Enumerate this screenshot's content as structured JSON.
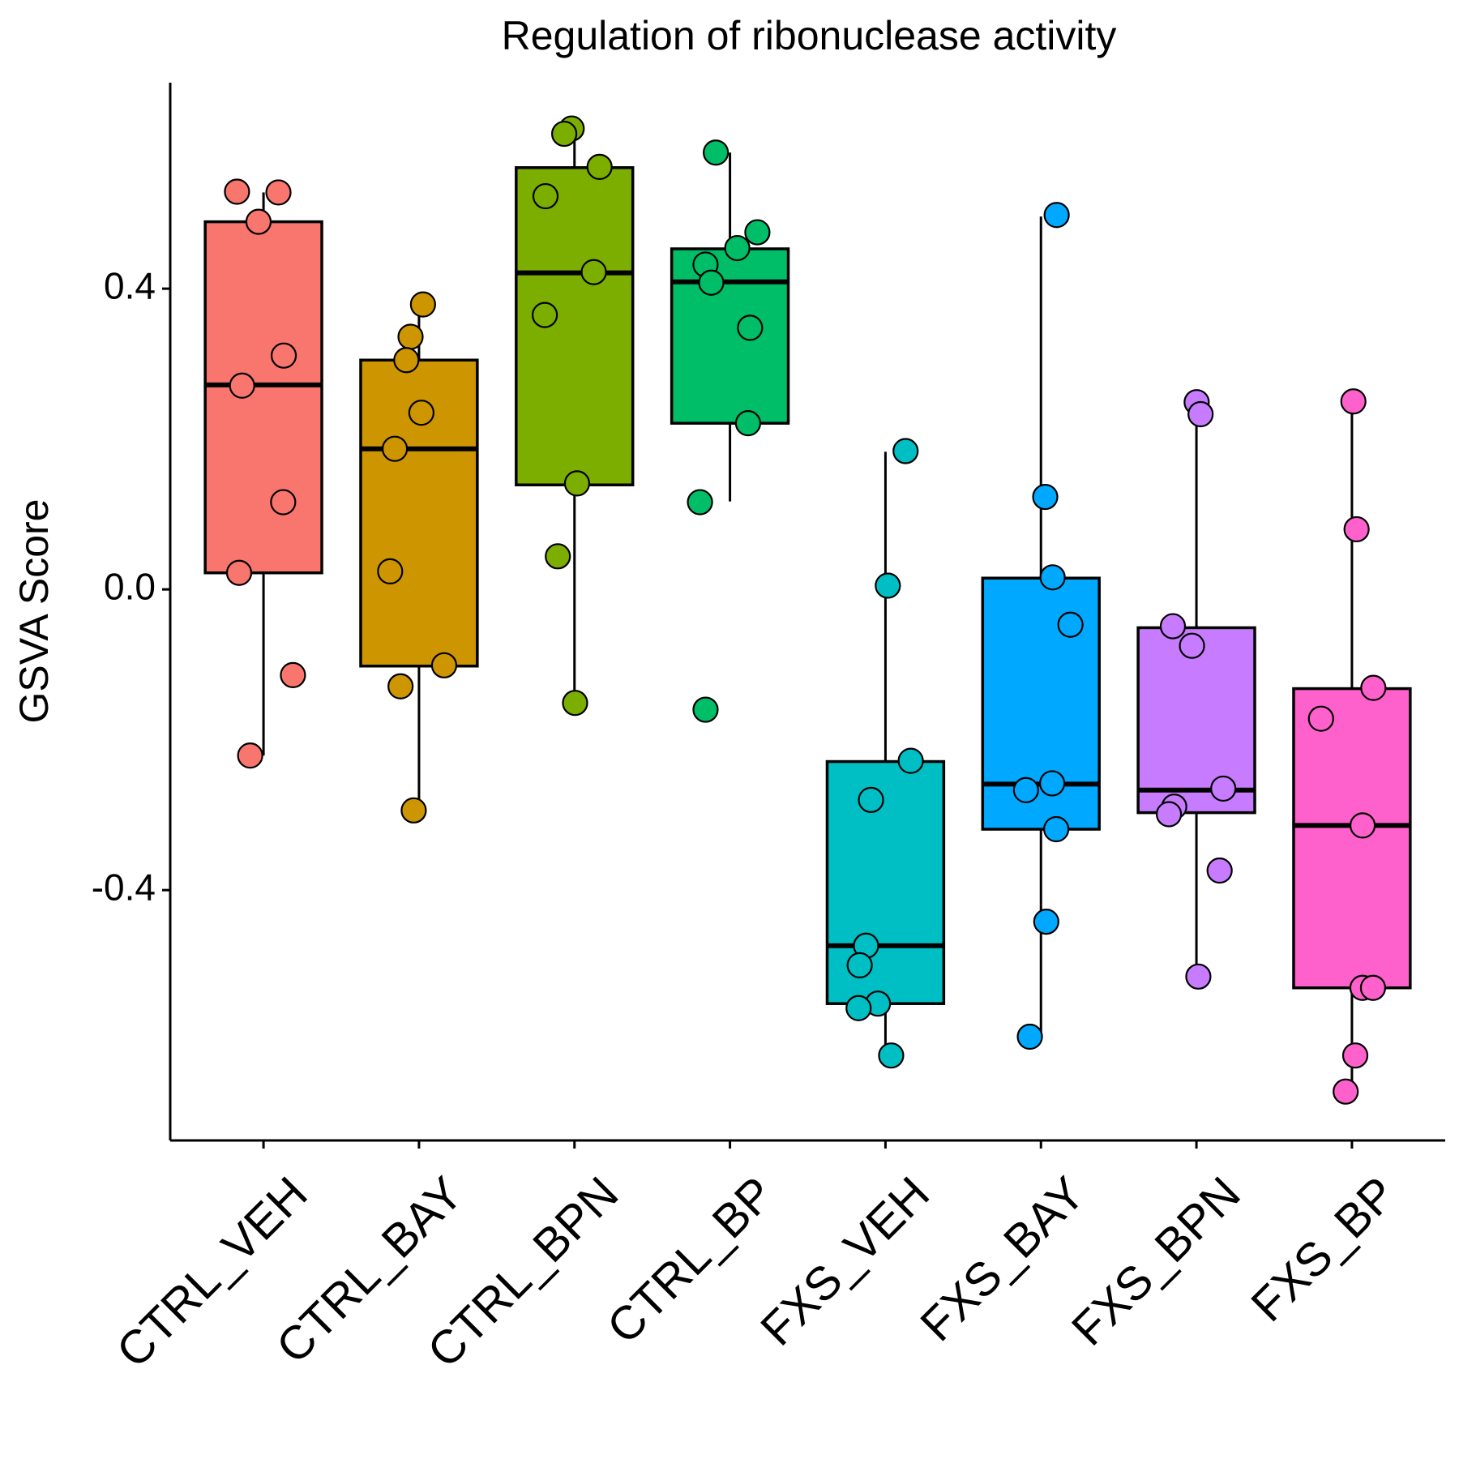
{
  "chart_data": {
    "type": "box",
    "title": "Regulation of ribonuclease activity",
    "y_label": "GSVA Score",
    "categories": [
      "CTRL_VEH",
      "CTRL_BAY",
      "CTRL_BPN",
      "CTRL_BP",
      "FXS_VEH",
      "FXS_BAY",
      "FXS_BPN",
      "FXS_BP"
    ],
    "ylim": [
      -0.733,
      0.674
    ],
    "yticks": [
      0.4,
      {
        "value": 0,
        "label": "0.0"
      },
      -0.4
    ],
    "boxes": [
      {
        "color": "#F8766D",
        "whisker_low": -0.221,
        "q1": 0.022,
        "median": 0.272,
        "q3": 0.489,
        "whisker_high": 0.528,
        "points": [
          0.528,
          0.529,
          0.489,
          0.311,
          0.271,
          0.116,
          0.022,
          -0.114,
          -0.221
        ]
      },
      {
        "color": "#CD9600",
        "whisker_low": -0.294,
        "q1": -0.102,
        "median": 0.187,
        "q3": 0.305,
        "whisker_high": 0.378,
        "points": [
          0.379,
          0.336,
          0.305,
          0.235,
          0.187,
          0.024,
          -0.101,
          -0.129,
          -0.294
        ]
      },
      {
        "color": "#7CAE00",
        "whisker_low": -0.149,
        "q1": 0.139,
        "median": 0.421,
        "q3": 0.561,
        "whisker_high": 0.613,
        "points": [
          0.613,
          0.606,
          0.562,
          0.523,
          0.422,
          0.365,
          0.141,
          0.044,
          -0.151
        ]
      },
      {
        "color": "#00BE67",
        "whisker_low": 0.117,
        "q1": 0.221,
        "median": 0.409,
        "q3": 0.453,
        "whisker_high": 0.581,
        "points": [
          0.581,
          0.475,
          0.454,
          0.432,
          0.408,
          0.348,
          0.221,
          0.116,
          -0.16
        ]
      },
      {
        "color": "#00BFC4",
        "whisker_low": -0.618,
        "q1": -0.551,
        "median": -0.474,
        "q3": -0.229,
        "whisker_high": 0.183,
        "points": [
          0.184,
          0.005,
          -0.228,
          -0.28,
          -0.474,
          -0.5,
          -0.551,
          -0.557,
          -0.62
        ]
      },
      {
        "color": "#00A9FF",
        "whisker_low": -0.595,
        "q1": -0.319,
        "median": -0.259,
        "q3": 0.015,
        "whisker_high": 0.496,
        "points": [
          0.498,
          0.123,
          0.016,
          -0.047,
          -0.258,
          -0.267,
          -0.319,
          -0.442,
          -0.595
        ]
      },
      {
        "color": "#C77CFF",
        "whisker_low": -0.514,
        "q1": -0.297,
        "median": -0.267,
        "q3": -0.051,
        "whisker_high": 0.248,
        "points": [
          0.249,
          0.233,
          -0.049,
          -0.075,
          -0.265,
          -0.289,
          -0.299,
          -0.374,
          -0.515
        ]
      },
      {
        "color": "#FF61CC",
        "whisker_low": -0.668,
        "q1": -0.53,
        "median": -0.314,
        "q3": -0.132,
        "whisker_high": 0.249,
        "points": [
          0.25,
          0.08,
          -0.131,
          -0.172,
          -0.314,
          -0.53,
          -0.53,
          -0.62,
          -0.668
        ]
      }
    ]
  }
}
